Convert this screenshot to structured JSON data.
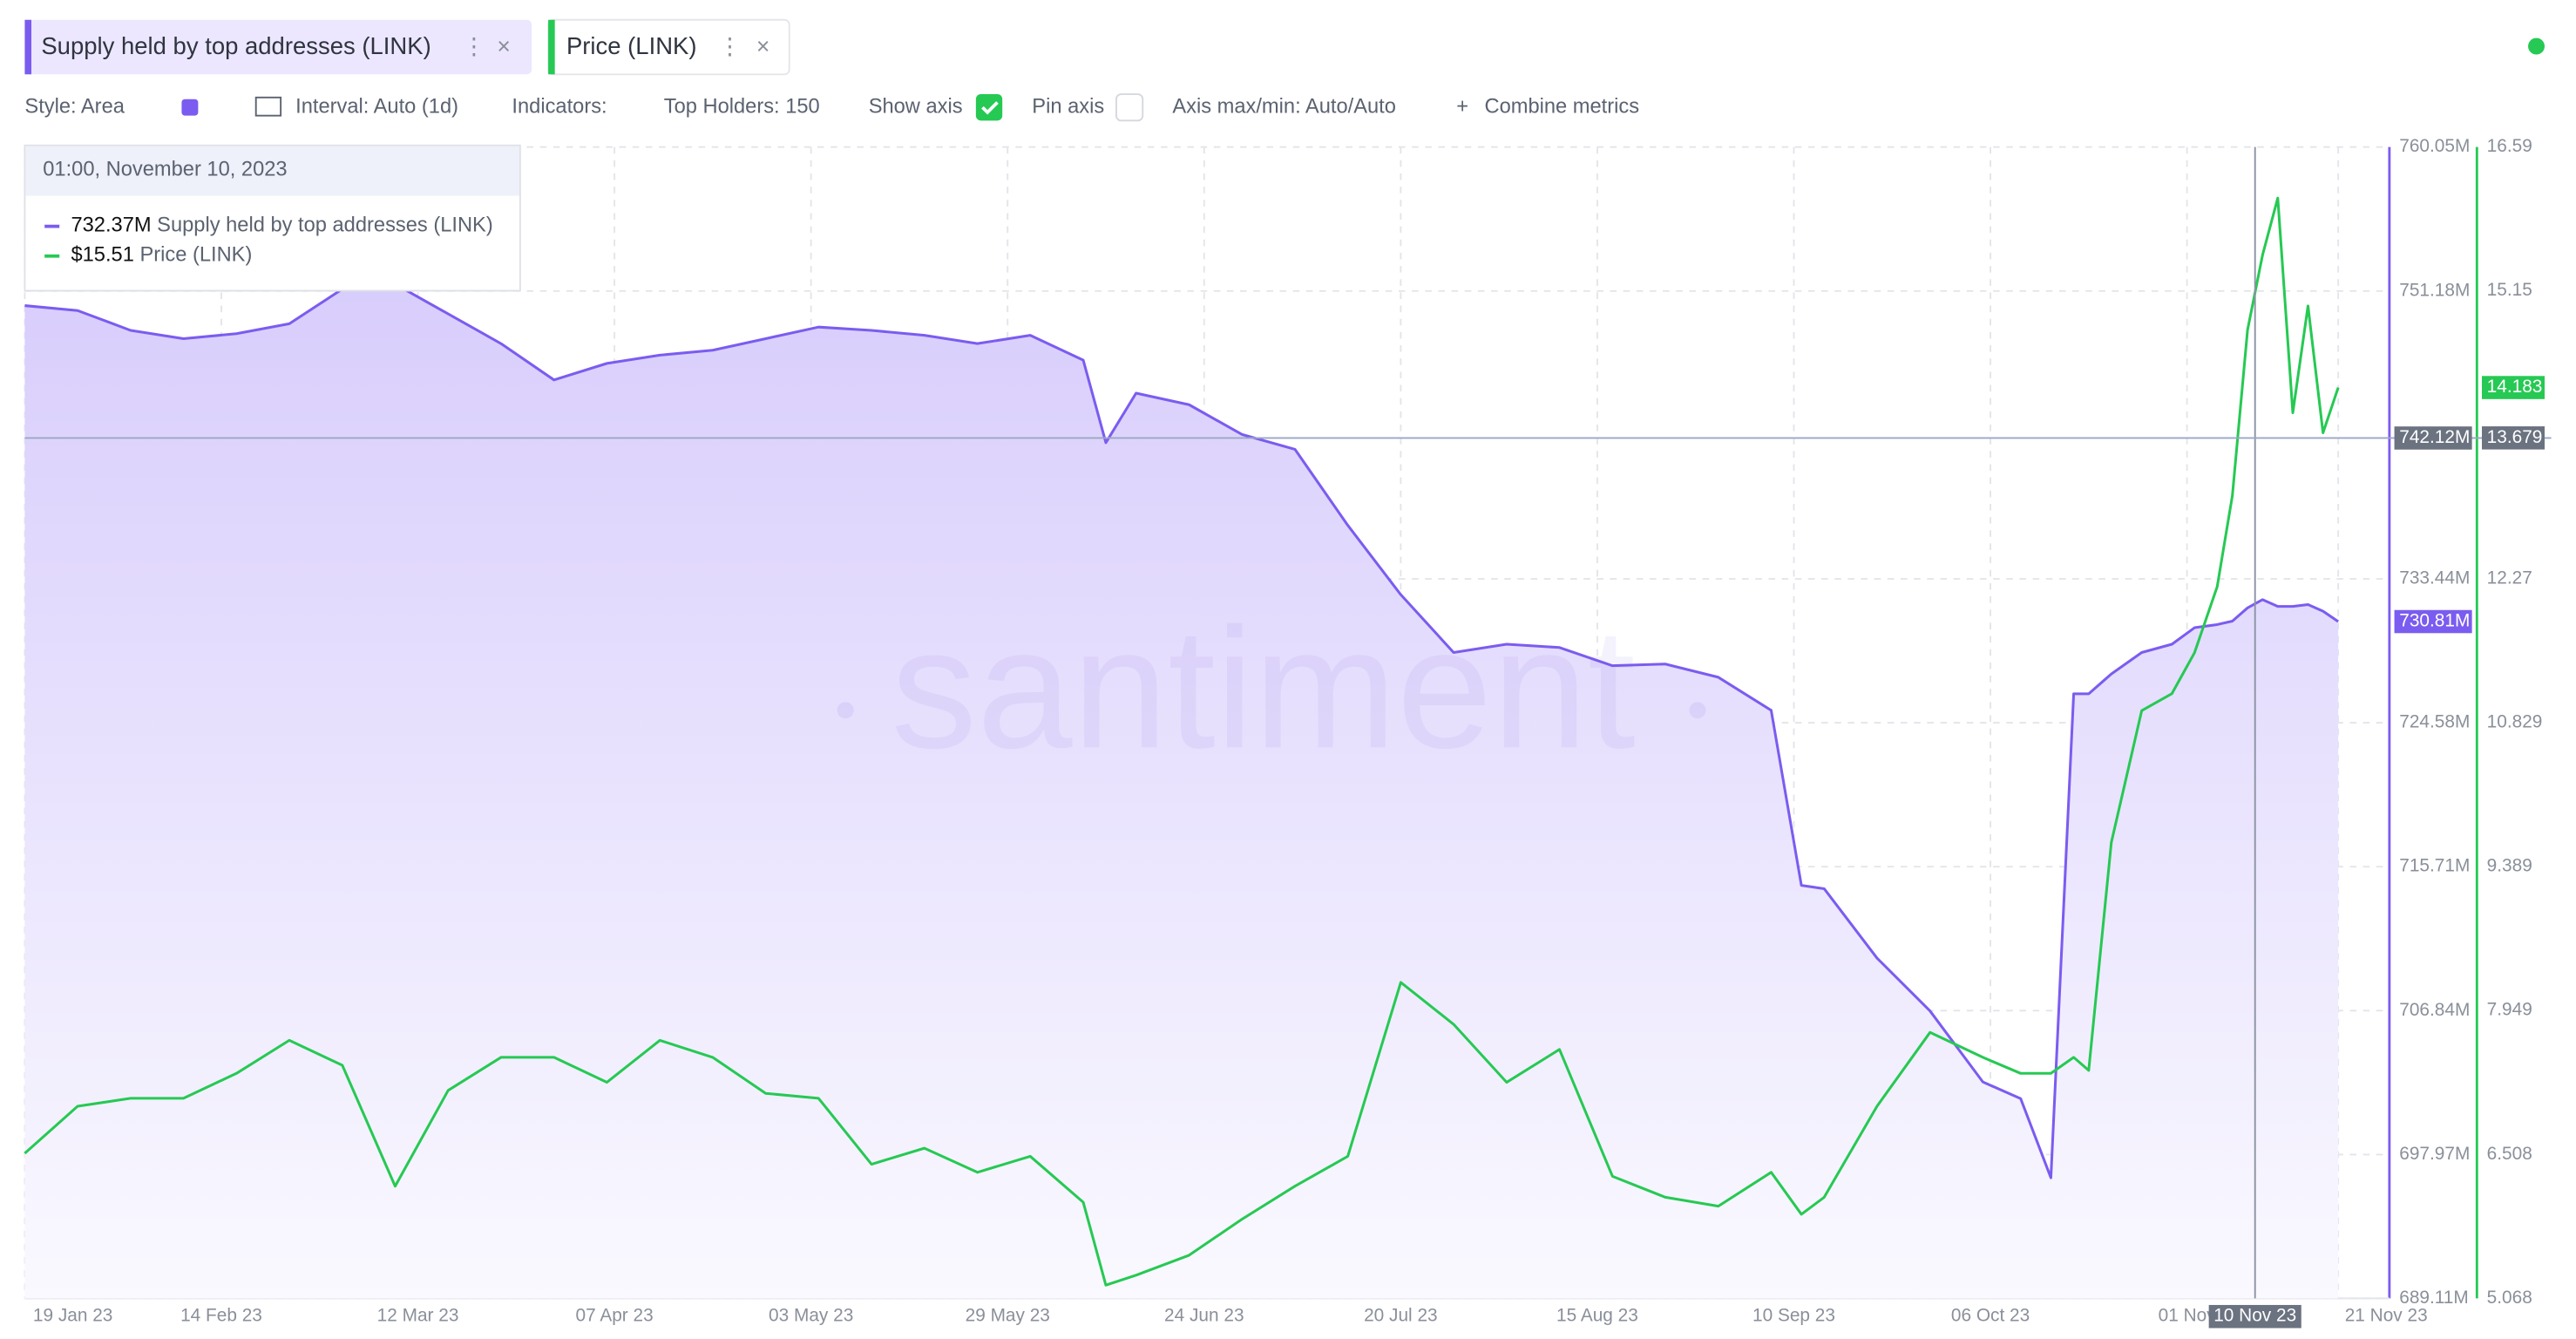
{
  "ui": {
    "toolbar": {
      "style": "Style: Area",
      "interval": "Interval: Auto (1d)",
      "indicators": "Indicators:",
      "top_holders": "Top Holders: 150",
      "show_axis": "Show axis",
      "pin_axis": "Pin axis",
      "axis_maxmin": "Axis max/min: Auto/Auto",
      "combine": "Combine metrics"
    },
    "watermark": "santiment"
  },
  "chart_data": {
    "type": "area",
    "x": [
      "2023-01-19",
      "2023-01-26",
      "2023-02-02",
      "2023-02-09",
      "2023-02-16",
      "2023-02-23",
      "2023-03-02",
      "2023-03-09",
      "2023-03-16",
      "2023-03-23",
      "2023-03-30",
      "2023-04-06",
      "2023-04-13",
      "2023-04-20",
      "2023-04-27",
      "2023-05-04",
      "2023-05-11",
      "2023-05-18",
      "2023-05-25",
      "2023-06-01",
      "2023-06-08",
      "2023-06-11",
      "2023-06-15",
      "2023-06-22",
      "2023-06-29",
      "2023-07-06",
      "2023-07-13",
      "2023-07-20",
      "2023-07-27",
      "2023-08-03",
      "2023-08-10",
      "2023-08-17",
      "2023-08-24",
      "2023-08-31",
      "2023-09-07",
      "2023-09-11",
      "2023-09-14",
      "2023-09-21",
      "2023-09-28",
      "2023-10-05",
      "2023-10-10",
      "2023-10-14",
      "2023-10-17",
      "2023-10-19",
      "2023-10-22",
      "2023-10-26",
      "2023-10-30",
      "2023-11-02",
      "2023-11-05",
      "2023-11-07",
      "2023-11-09",
      "2023-11-11",
      "2023-11-13",
      "2023-11-15",
      "2023-11-17",
      "2023-11-19",
      "2023-11-21"
    ],
    "series": [
      {
        "name": "Supply held by top addresses (LINK)",
        "color": "#7b5cf0",
        "style": "area",
        "values": [
          750.28,
          749.97,
          748.75,
          748.24,
          748.55,
          749.16,
          751.3,
          751.6,
          749.77,
          747.94,
          745.7,
          746.72,
          747.23,
          747.53,
          748.24,
          748.96,
          748.75,
          748.45,
          747.94,
          748.45,
          746.92,
          741.83,
          744.88,
          744.17,
          742.34,
          741.42,
          736.74,
          732.47,
          728.91,
          729.41,
          729.21,
          728.09,
          728.19,
          727.38,
          725.34,
          714.55,
          714.35,
          710.08,
          706.82,
          702.44,
          701.42,
          696.54,
          726.36,
          726.36,
          727.58,
          728.91,
          729.41,
          730.43,
          730.63,
          730.84,
          731.65,
          732.16,
          731.75,
          731.75,
          731.86,
          731.45,
          730.81
        ]
      },
      {
        "name": "Price (LINK)",
        "color": "#26c953",
        "style": "line",
        "axis": "y2",
        "values": [
          6.52,
          6.99,
          7.07,
          7.07,
          7.32,
          7.65,
          7.4,
          6.19,
          7.15,
          7.48,
          7.48,
          7.23,
          7.65,
          7.48,
          7.12,
          7.07,
          6.41,
          6.57,
          6.33,
          6.49,
          6.03,
          5.2,
          5.3,
          5.5,
          5.86,
          6.19,
          6.49,
          8.23,
          7.81,
          7.23,
          7.56,
          6.29,
          6.08,
          5.99,
          6.33,
          5.91,
          6.08,
          6.99,
          7.73,
          7.48,
          7.32,
          7.32,
          7.48,
          7.35,
          9.63,
          10.95,
          11.12,
          11.53,
          12.19,
          13.1,
          14.76,
          15.51,
          16.08,
          13.93,
          15,
          13.73,
          14.183
        ]
      }
    ],
    "xlim": [
      "2023-01-19",
      "2023-11-21"
    ],
    "xticks": [
      {
        "value": "2023-01-19",
        "label": "19 Jan 23"
      },
      {
        "value": "2023-02-14",
        "label": "14 Feb 23"
      },
      {
        "value": "2023-03-12",
        "label": "12 Mar 23"
      },
      {
        "value": "2023-04-07",
        "label": "07 Apr 23"
      },
      {
        "value": "2023-05-03",
        "label": "03 May 23"
      },
      {
        "value": "2023-05-29",
        "label": "29 May 23"
      },
      {
        "value": "2023-06-24",
        "label": "24 Jun 23"
      },
      {
        "value": "2023-07-20",
        "label": "20 Jul 23"
      },
      {
        "value": "2023-08-15",
        "label": "15 Aug 23"
      },
      {
        "value": "2023-09-10",
        "label": "10 Sep 23"
      },
      {
        "value": "2023-10-06",
        "label": "06 Oct 23"
      },
      {
        "value": "2023-11-01",
        "label": "01 Nov"
      },
      {
        "value": "2023-11-21",
        "label": "21 Nov 23"
      }
    ],
    "ylim": [
      689.11,
      760.05
    ],
    "yticks": [
      {
        "value": 760.05,
        "label": "760.05M"
      },
      {
        "value": 751.18,
        "label": "751.18M"
      },
      {
        "value": 733.44,
        "label": "733.44M"
      },
      {
        "value": 724.58,
        "label": "724.58M"
      },
      {
        "value": 715.71,
        "label": "715.71M"
      },
      {
        "value": 706.84,
        "label": "706.84M"
      },
      {
        "value": 697.97,
        "label": "697.97M"
      },
      {
        "value": 689.11,
        "label": "689.11M"
      }
    ],
    "y2lim": [
      5.068,
      16.59
    ],
    "y2ticks": [
      16.59,
      15.15,
      12.27,
      10.829,
      9.389,
      7.949,
      6.508,
      5.068
    ],
    "grid": true,
    "crosshair": {
      "x": {
        "value": "2023-11-10",
        "label": "10 Nov 23"
      },
      "y": {
        "value": 742.12,
        "label": "742.12M"
      },
      "y2": 13.679
    },
    "last_labels": [
      {
        "value": 730.81,
        "label": "730.81M",
        "axis": "y"
      },
      {
        "value": 14.183,
        "label": "14.183",
        "axis": "y2"
      }
    ],
    "tooltip": {
      "title": "01:00, November 10, 2023",
      "values": [
        732.37,
        15.51
      ],
      "value_labels": [
        "732.37M",
        "$15.51"
      ]
    }
  }
}
